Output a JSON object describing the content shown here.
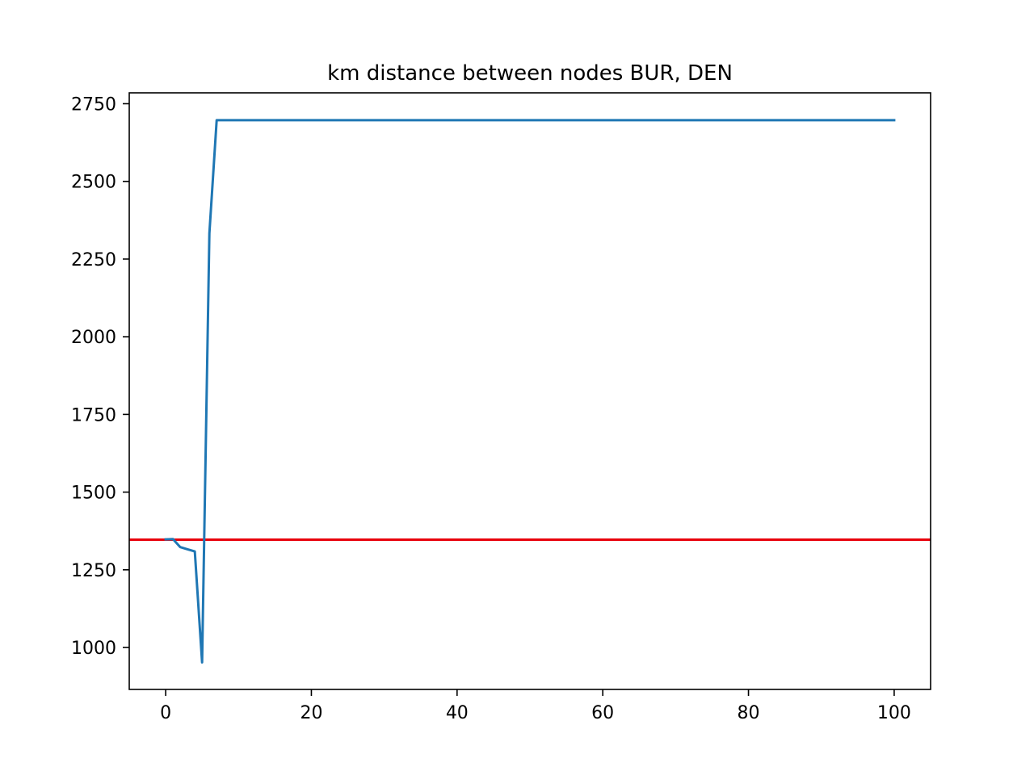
{
  "chart_data": {
    "type": "line",
    "title": "km distance between nodes BUR, DEN",
    "xlabel": "",
    "ylabel": "",
    "xlim": [
      -5,
      105
    ],
    "ylim": [
      865,
      2785
    ],
    "xticks": [
      0,
      20,
      40,
      60,
      80,
      100
    ],
    "yticks": [
      1000,
      1250,
      1500,
      1750,
      2000,
      2250,
      2500,
      2750
    ],
    "grid": false,
    "series": [
      {
        "color": "#1f77b4",
        "x": [
          0,
          1,
          2,
          3,
          4,
          5,
          6,
          7,
          100
        ],
        "y": [
          1348,
          1349,
          1323,
          1316,
          1309,
          952,
          2333,
          2697,
          2697
        ]
      }
    ],
    "reference_lines": [
      {
        "orientation": "horizontal",
        "y": 1347,
        "color": "#e8000b"
      }
    ]
  }
}
